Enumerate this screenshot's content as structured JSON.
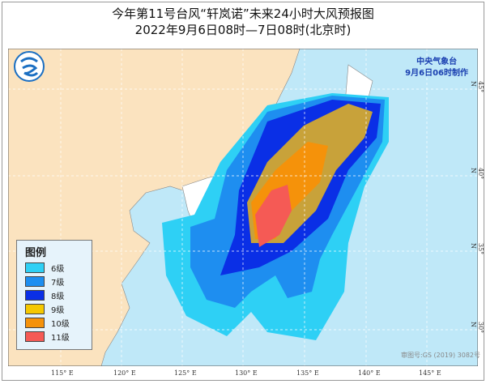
{
  "title": "今年第11号台风“轩岚诺”未来24小时大风预报图",
  "subtitle": "2022年9月6日08时—7日08时(北京时)",
  "agency": {
    "name": "中央气象台",
    "issued": "9月6日06时制作"
  },
  "legend": {
    "title": "图例",
    "items": [
      {
        "label": "6级",
        "color": "#2ed0f5"
      },
      {
        "label": "7级",
        "color": "#1e8ef0"
      },
      {
        "label": "8级",
        "color": "#0a2fe6"
      },
      {
        "label": "9级",
        "color": "#f5c800"
      },
      {
        "label": "10级",
        "color": "#f5920a"
      },
      {
        "label": "11级",
        "color": "#f55a55"
      }
    ]
  },
  "longitude_labels": [
    "115° E",
    "120° E",
    "125° E",
    "130° E",
    "135° E",
    "140° E",
    "145° E"
  ],
  "latitude_labels": [
    "45° N",
    "40° N",
    "35° N",
    "30° N"
  ],
  "credit": "审图号:GS (2019) 3082号",
  "colors": {
    "sea": "#bfe8f8",
    "china_land": "#fbe3bf",
    "other_land": "#ffffff",
    "mixed_9": "#c8a23a"
  }
}
